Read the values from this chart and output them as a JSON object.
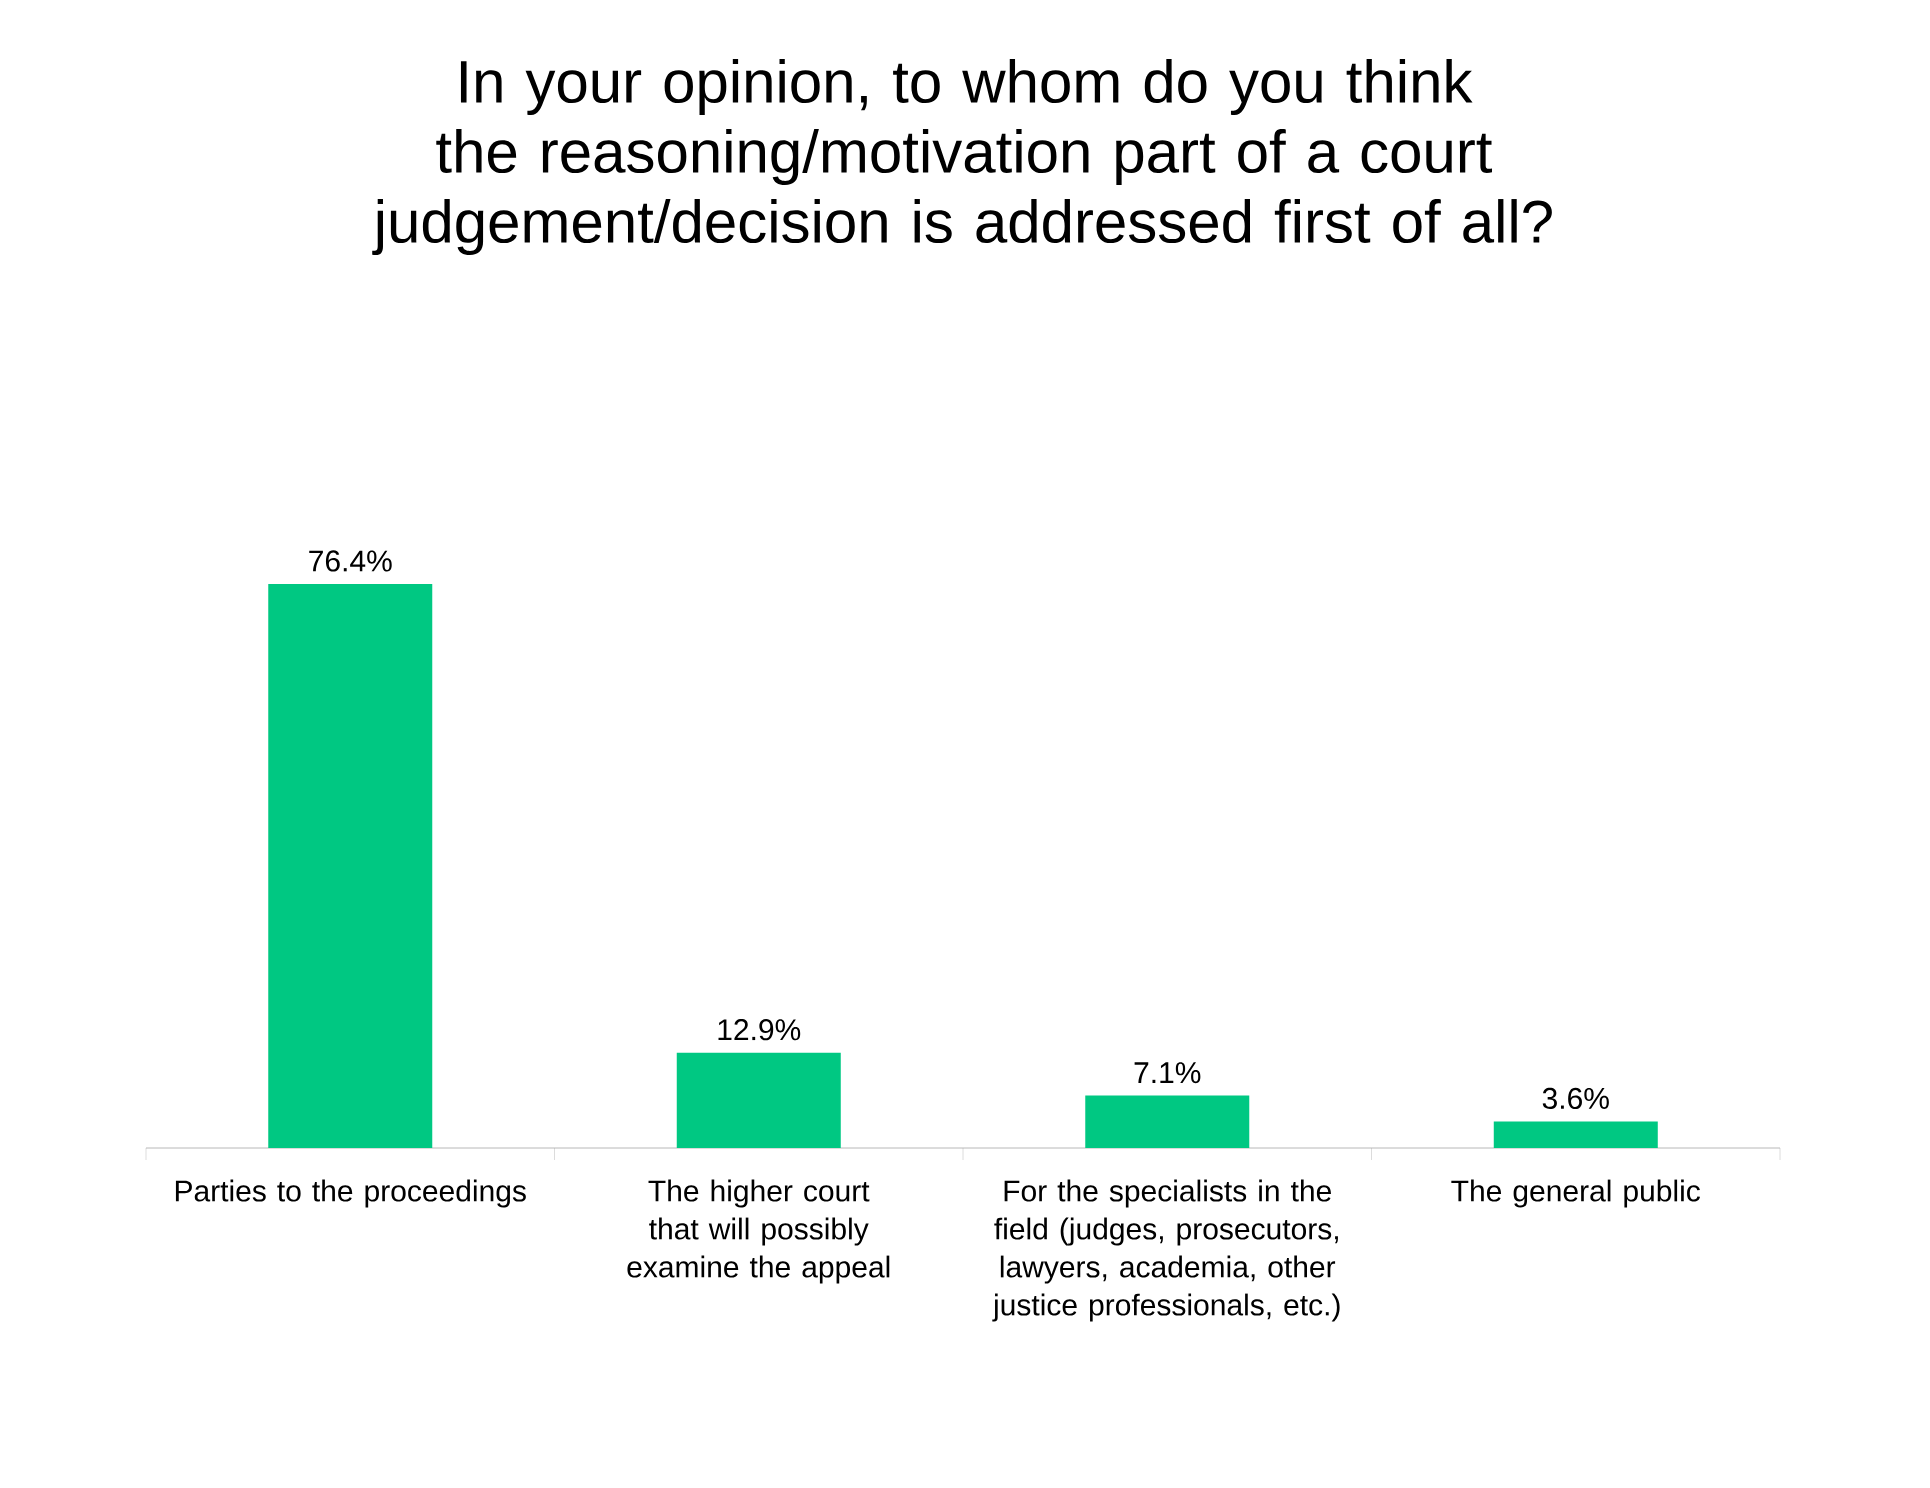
{
  "chart_data": {
    "type": "bar",
    "title": "In your opinion, to whom do you think the reasoning/motivation part of a court judgement/decision is addressed first of all?",
    "categories": [
      "Parties to the proceedings",
      "The higher court that will possibly examine the appeal",
      "For the specialists in the field (judges, prosecutors, lawyers, academia, other justice professionals, etc.)",
      "The general public"
    ],
    "values": [
      76.4,
      12.9,
      7.1,
      3.6
    ],
    "value_labels": [
      "76.4%",
      "12.9%",
      "7.1%",
      "3.6%"
    ],
    "color": "#00c882"
  }
}
